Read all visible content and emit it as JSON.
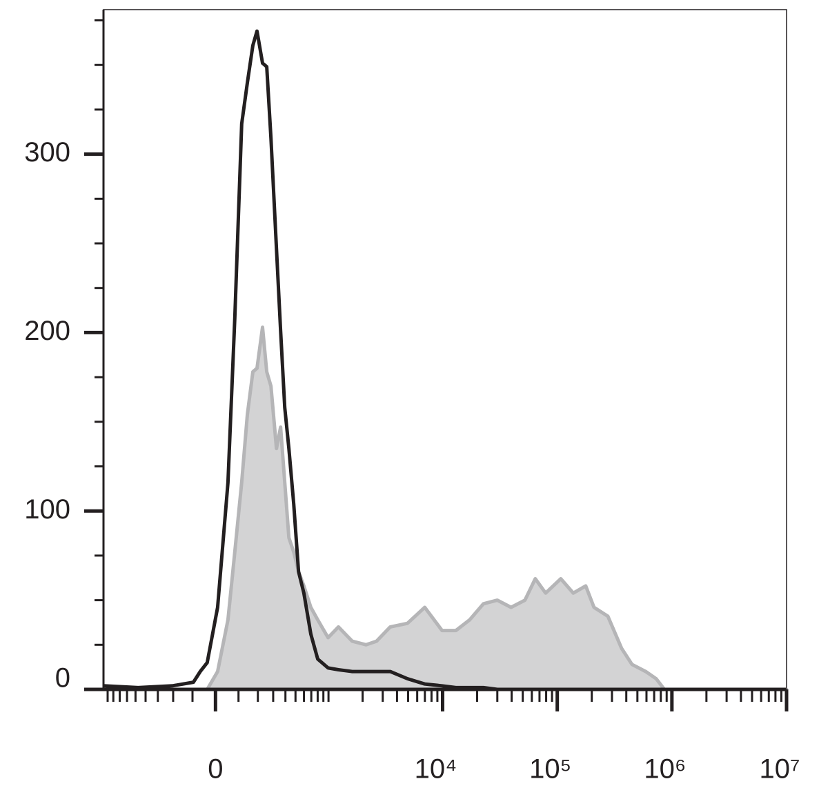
{
  "chart_data": {
    "type": "histogram-overlay",
    "xscale": "biexponential",
    "xlim": [
      -980,
      10000000
    ],
    "ylim": [
      0,
      381
    ],
    "xticks": [
      0,
      {
        "value": 10000,
        "label": "10⁴"
      },
      {
        "value": 100000,
        "label": "10⁵"
      },
      {
        "value": 1000000,
        "label": "10⁶"
      },
      {
        "value": 10000000,
        "label": "10⁷"
      }
    ],
    "xminorticks": [
      -900,
      -800,
      -700,
      -600,
      -500,
      -400,
      -300,
      -200,
      -100,
      100,
      200,
      300,
      400,
      500,
      600,
      700,
      800,
      900,
      1000,
      2000,
      3000,
      4000,
      5000,
      6000,
      7000,
      8000,
      9000,
      20000,
      30000,
      40000,
      50000,
      60000,
      70000,
      80000,
      90000,
      200000,
      300000,
      400000,
      500000,
      600000,
      700000,
      800000,
      900000,
      2000000,
      3000000,
      4000000,
      5000000,
      6000000,
      7000000,
      8000000,
      9000000
    ],
    "yticks": [
      0,
      100,
      200,
      300
    ],
    "yminorticks": [
      25,
      50,
      75,
      125,
      150,
      175,
      225,
      250,
      275,
      325,
      350,
      375
    ],
    "x": [
      -980,
      -472,
      -203,
      -96,
      -65,
      -35,
      9,
      53,
      83,
      115,
      143,
      172,
      195,
      228,
      255,
      284,
      325,
      358,
      394,
      432,
      481,
      534,
      599,
      693,
      801,
      992,
      1225,
      1622,
      2146,
      2646,
      3490,
      4932,
      6980,
      9886,
      13040,
      17220,
      22700,
      29990,
      39540,
      52200,
      64290,
      79170,
      107400,
      137900,
      177000,
      209000,
      276100,
      364100,
      448500,
      591500,
      728600,
      860000,
      10000000
    ],
    "series": [
      {
        "color": "#b5b5b7",
        "filled": true,
        "values": [
          0,
          0,
          0,
          0,
          0,
          0,
          10,
          39,
          77,
          116,
          154,
          178,
          180,
          203,
          178,
          170,
          135,
          147,
          116,
          85,
          77,
          66,
          58,
          46,
          39,
          29,
          35,
          27,
          25,
          27,
          35,
          37,
          46,
          33,
          33,
          39,
          48,
          50,
          46,
          50,
          62,
          54,
          62,
          54,
          58,
          46,
          41,
          23,
          14,
          10,
          6,
          0,
          0
        ]
      },
      {
        "color": "#231f20",
        "filled": false,
        "values": [
          2,
          1,
          2,
          4,
          10,
          15,
          46,
          116,
          208,
          317,
          340,
          361,
          369,
          351,
          349,
          309,
          247,
          201,
          158,
          135,
          104,
          66,
          54,
          31,
          17,
          12,
          11,
          10,
          10,
          10,
          10,
          6,
          3,
          2,
          1,
          1,
          1,
          0,
          0,
          0,
          0,
          0,
          0,
          0,
          0,
          0,
          0,
          0,
          0,
          0,
          0,
          0,
          0
        ]
      }
    ]
  }
}
